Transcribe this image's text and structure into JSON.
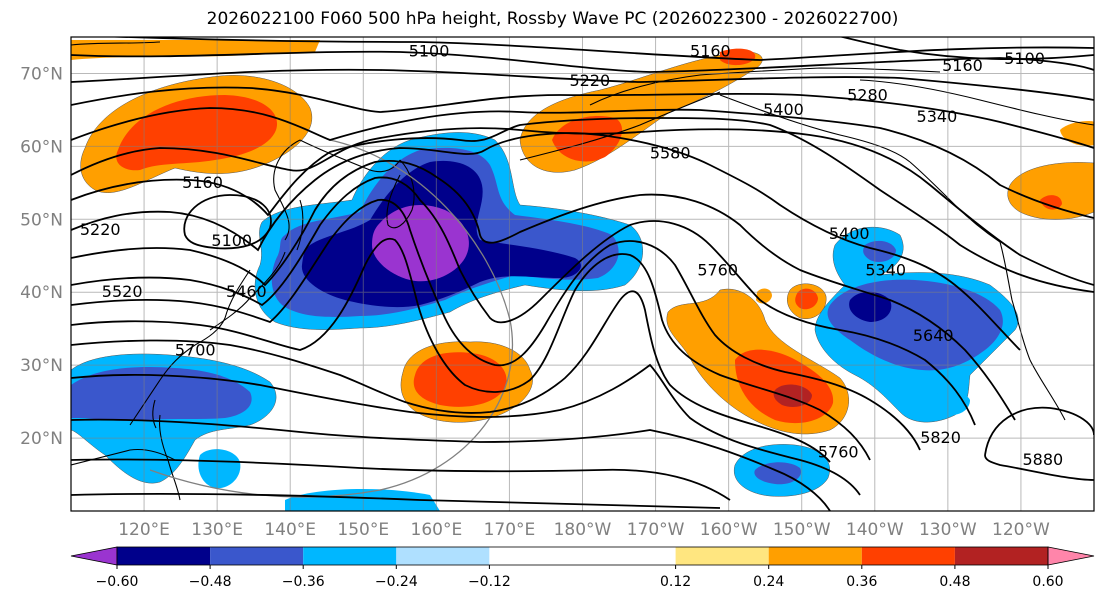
{
  "title": "2026022100 F060 500 hPa height, Rossby Wave PC (2026022300 - 2026022700)",
  "map": {
    "projection": "PlateCarree",
    "lon_range": [
      110,
      250
    ],
    "lat_range": [
      10,
      75
    ],
    "lat_ticks": [
      {
        "lat": 70,
        "label": "70°N"
      },
      {
        "lat": 60,
        "label": "60°N"
      },
      {
        "lat": 50,
        "label": "50°N"
      },
      {
        "lat": 40,
        "label": "40°N"
      },
      {
        "lat": 30,
        "label": "30°N"
      },
      {
        "lat": 20,
        "label": "20°N"
      }
    ],
    "lon_ticks": [
      {
        "lon": 120,
        "label": "120°E"
      },
      {
        "lon": 130,
        "label": "130°E"
      },
      {
        "lon": 140,
        "label": "140°E"
      },
      {
        "lon": 150,
        "label": "150°E"
      },
      {
        "lon": 160,
        "label": "160°E"
      },
      {
        "lon": 170,
        "label": "170°E"
      },
      {
        "lon": 180,
        "label": "180°W"
      },
      {
        "lon": 190,
        "label": "170°W"
      },
      {
        "lon": 200,
        "label": "160°W"
      },
      {
        "lon": 210,
        "label": "150°W"
      },
      {
        "lon": 220,
        "label": "140°W"
      },
      {
        "lon": 230,
        "label": "130°W"
      },
      {
        "lon": 240,
        "label": "120°W"
      }
    ],
    "contour_labels": [
      {
        "text": "5100",
        "lon": 159,
        "lat": 73
      },
      {
        "text": "5160",
        "lon": 197.5,
        "lat": 73
      },
      {
        "text": "5160",
        "lon": 232,
        "lat": 71
      },
      {
        "text": "5100",
        "lon": 240.5,
        "lat": 72
      },
      {
        "text": "5220",
        "lon": 181,
        "lat": 69
      },
      {
        "text": "5280",
        "lon": 219,
        "lat": 67
      },
      {
        "text": "5340",
        "lon": 228.5,
        "lat": 64
      },
      {
        "text": "5400",
        "lon": 207.5,
        "lat": 65
      },
      {
        "text": "5580",
        "lon": 192,
        "lat": 59
      },
      {
        "text": "5160",
        "lon": 128,
        "lat": 55
      },
      {
        "text": "5220",
        "lon": 114,
        "lat": 48.5
      },
      {
        "text": "5100",
        "lon": 132,
        "lat": 47
      },
      {
        "text": "5520",
        "lon": 117,
        "lat": 40
      },
      {
        "text": "5460",
        "lon": 134,
        "lat": 40
      },
      {
        "text": "5700",
        "lon": 127,
        "lat": 32
      },
      {
        "text": "5760",
        "lon": 198.5,
        "lat": 43
      },
      {
        "text": "5400",
        "lon": 216.5,
        "lat": 48
      },
      {
        "text": "5340",
        "lon": 221.5,
        "lat": 43
      },
      {
        "text": "5640",
        "lon": 228,
        "lat": 34
      },
      {
        "text": "5820",
        "lon": 229,
        "lat": 20
      },
      {
        "text": "5760",
        "lon": 215,
        "lat": 18
      },
      {
        "text": "5880",
        "lon": 243,
        "lat": 17
      }
    ]
  },
  "colorbar": {
    "colors": [
      "#9a34d0",
      "#00008b",
      "#3a57cc",
      "#00b7ff",
      "#afe0ff",
      "#ffffff",
      "#ffe680",
      "#ff9f00",
      "#ff4000",
      "#b22222",
      "#ff85aa"
    ],
    "ticks": [
      {
        "value": -0.6,
        "label": "−0.60"
      },
      {
        "value": -0.48,
        "label": "−0.48"
      },
      {
        "value": -0.36,
        "label": "−0.36"
      },
      {
        "value": -0.24,
        "label": "−0.24"
      },
      {
        "value": -0.12,
        "label": "−0.12"
      },
      {
        "value": 0.12,
        "label": "0.12"
      },
      {
        "value": 0.24,
        "label": "0.24"
      },
      {
        "value": 0.36,
        "label": "0.36"
      },
      {
        "value": 0.48,
        "label": "0.48"
      },
      {
        "value": 0.6,
        "label": "0.60"
      }
    ]
  }
}
